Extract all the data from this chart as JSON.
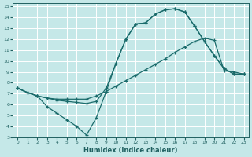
{
  "xlabel": "Humidex (Indice chaleur)",
  "xlim": [
    -0.5,
    23.5
  ],
  "ylim": [
    3,
    15.3
  ],
  "yticks": [
    3,
    4,
    5,
    6,
    7,
    8,
    9,
    10,
    11,
    12,
    13,
    14,
    15
  ],
  "xticks": [
    0,
    1,
    2,
    3,
    4,
    5,
    6,
    7,
    8,
    9,
    10,
    11,
    12,
    13,
    14,
    15,
    16,
    17,
    18,
    19,
    20,
    21,
    22,
    23
  ],
  "bg_color": "#c5e8e8",
  "grid_color": "#ffffff",
  "line_color": "#1a6b6b",
  "curve1_x": [
    0,
    1,
    2,
    3,
    4,
    5,
    6,
    7,
    8,
    9,
    10,
    11,
    12,
    13,
    14,
    15,
    16,
    17,
    18,
    19,
    20,
    21,
    22,
    23
  ],
  "curve1_y": [
    7.5,
    7.1,
    6.8,
    6.6,
    6.4,
    6.3,
    6.2,
    6.1,
    6.3,
    7.5,
    9.8,
    12.0,
    13.4,
    13.5,
    14.3,
    14.7,
    14.8,
    14.5,
    13.2,
    11.8,
    10.5,
    9.3,
    8.8,
    8.8
  ],
  "curve2_x": [
    0,
    1,
    2,
    3,
    4,
    5,
    6,
    7,
    8,
    9,
    10,
    11,
    12,
    13,
    14,
    15,
    16,
    17,
    18,
    19,
    20,
    21,
    22,
    23
  ],
  "curve2_y": [
    7.5,
    7.1,
    6.8,
    5.8,
    5.2,
    4.6,
    4.0,
    3.2,
    4.8,
    7.2,
    9.8,
    12.0,
    13.4,
    13.5,
    14.3,
    14.7,
    14.8,
    14.5,
    13.2,
    11.8,
    10.5,
    9.3,
    8.8,
    8.8
  ],
  "curve3_x": [
    0,
    1,
    2,
    3,
    4,
    5,
    6,
    7,
    8,
    9,
    10,
    11,
    12,
    13,
    14,
    15,
    16,
    17,
    18,
    19,
    20,
    21,
    22,
    23
  ],
  "curve3_y": [
    7.5,
    7.1,
    6.8,
    6.6,
    6.5,
    6.5,
    6.5,
    6.5,
    6.8,
    7.2,
    7.7,
    8.2,
    8.7,
    9.2,
    9.7,
    10.2,
    10.8,
    11.3,
    11.8,
    12.1,
    11.9,
    9.1,
    9.0,
    8.8
  ]
}
